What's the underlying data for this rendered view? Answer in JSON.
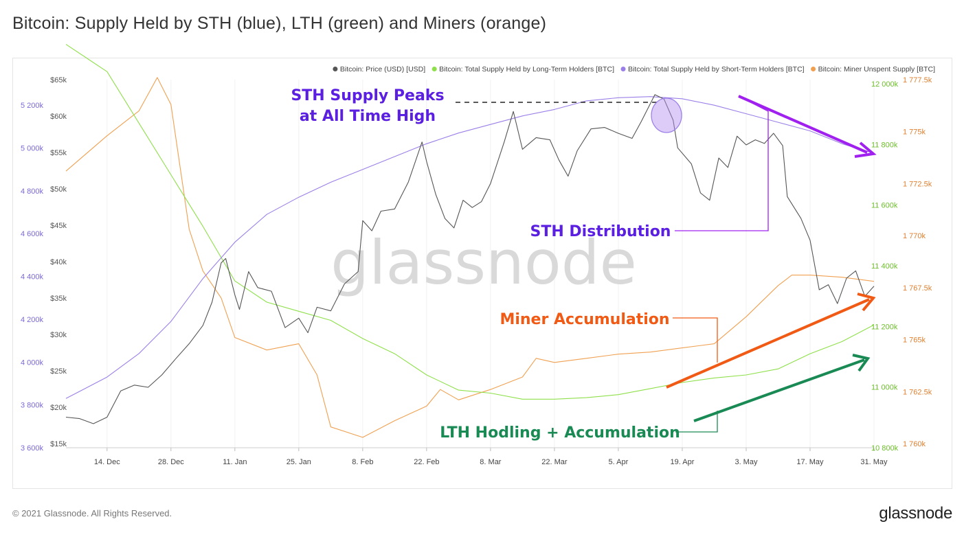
{
  "page": {
    "title": "Bitcoin: Supply Held by STH (blue), LTH (green) and Miners (orange)",
    "footer_copyright": "© 2021 Glassnode. All Rights Reserved.",
    "footer_logo": "glassnode",
    "watermark": "glassnode"
  },
  "colors": {
    "price": "#555555",
    "lth": "#8ee04a",
    "sth": "#9b7fe8",
    "miner": "#f0a050",
    "sth_axis": "#7b68d8",
    "lth_axis": "#6cbf2a",
    "miner_axis": "#e08030",
    "ann_sth": "#5a1fe0",
    "ann_miner": "#f05a14",
    "ann_lth": "#1a8a55",
    "arrow_sth": "#a020f0"
  },
  "chart_data": {
    "type": "line",
    "legend": [
      {
        "label": "Bitcoin: Price (USD) [USD]",
        "color": "#555555"
      },
      {
        "label": "Bitcoin: Total Supply Held by Long-Term Holders [BTC]",
        "color": "#8ee04a"
      },
      {
        "label": "Bitcoin: Total Supply Held by Short-Term Holders [BTC]",
        "color": "#9b7fe8"
      },
      {
        "label": "Bitcoin: Miner Unspent Supply [BTC]",
        "color": "#f0a050"
      }
    ],
    "legend_position": "top-right",
    "x_axis": {
      "type": "date",
      "range": [
        "2020-12-05",
        "2021-05-31"
      ],
      "ticks": [
        {
          "label": "14. Dec",
          "date": "2020-12-14"
        },
        {
          "label": "28. Dec",
          "date": "2020-12-28"
        },
        {
          "label": "11. Jan",
          "date": "2021-01-11"
        },
        {
          "label": "25. Jan",
          "date": "2021-01-25"
        },
        {
          "label": "8. Feb",
          "date": "2021-02-08"
        },
        {
          "label": "22. Feb",
          "date": "2021-02-22"
        },
        {
          "label": "8. Mar",
          "date": "2021-03-08"
        },
        {
          "label": "22. Mar",
          "date": "2021-03-22"
        },
        {
          "label": "5. Apr",
          "date": "2021-04-05"
        },
        {
          "label": "19. Apr",
          "date": "2021-04-19"
        },
        {
          "label": "3. May",
          "date": "2021-05-03"
        },
        {
          "label": "17. May",
          "date": "2021-05-17"
        },
        {
          "label": "31. May",
          "date": "2021-05-31"
        }
      ]
    },
    "axes": {
      "sth": {
        "side": "left-outer",
        "range": [
          3600,
          5300
        ],
        "ticks": [
          {
            "label": "3 600k",
            "value": 3600
          },
          {
            "label": "3 800k",
            "value": 3800
          },
          {
            "label": "4 000k",
            "value": 4000
          },
          {
            "label": "4 200k",
            "value": 4200
          },
          {
            "label": "4 400k",
            "value": 4400
          },
          {
            "label": "4 600k",
            "value": 4600
          },
          {
            "label": "4 800k",
            "value": 4800
          },
          {
            "label": "5 000k",
            "value": 5000
          },
          {
            "label": "5 200k",
            "value": 5200
          }
        ]
      },
      "price": {
        "side": "left-inner",
        "range": [
          15000,
          65000
        ],
        "ticks": [
          {
            "label": "$15k",
            "value": 15000
          },
          {
            "label": "$20k",
            "value": 20000
          },
          {
            "label": "$25k",
            "value": 25000
          },
          {
            "label": "$30k",
            "value": 30000
          },
          {
            "label": "$35k",
            "value": 35000
          },
          {
            "label": "$40k",
            "value": 40000
          },
          {
            "label": "$45k",
            "value": 45000
          },
          {
            "label": "$50k",
            "value": 50000
          },
          {
            "label": "$55k",
            "value": 55000
          },
          {
            "label": "$60k",
            "value": 60000
          },
          {
            "label": "$65k",
            "value": 65000
          }
        ]
      },
      "lth": {
        "side": "right-inner",
        "range": [
          10800,
          12000
        ],
        "ticks": [
          {
            "label": "10 800k",
            "value": 10800
          },
          {
            "label": "11 000k",
            "value": 11000
          },
          {
            "label": "11 200k",
            "value": 11200
          },
          {
            "label": "11 400k",
            "value": 11400
          },
          {
            "label": "11 600k",
            "value": 11600
          },
          {
            "label": "11 800k",
            "value": 11800
          },
          {
            "label": "12 000k",
            "value": 12000
          }
        ]
      },
      "miner": {
        "side": "right-outer",
        "range": [
          1760,
          1777.5
        ],
        "ticks": [
          {
            "label": "1 760k",
            "value": 1760
          },
          {
            "label": "1 762.5k",
            "value": 1762.5
          },
          {
            "label": "1 765k",
            "value": 1765
          },
          {
            "label": "1 767.5k",
            "value": 1767.5
          },
          {
            "label": "1 770k",
            "value": 1770
          },
          {
            "label": "1 772.5k",
            "value": 1772.5
          },
          {
            "label": "1 775k",
            "value": 1775
          },
          {
            "label": "1 777.5k",
            "value": 1777.5
          }
        ]
      }
    },
    "series": [
      {
        "name": "Bitcoin: Price (USD) [USD]",
        "axis": "price",
        "points": [
          [
            "2020-12-05",
            19200
          ],
          [
            "2020-12-08",
            19000
          ],
          [
            "2020-12-11",
            18300
          ],
          [
            "2020-12-14",
            19200
          ],
          [
            "2020-12-17",
            22800
          ],
          [
            "2020-12-20",
            23600
          ],
          [
            "2020-12-23",
            23300
          ],
          [
            "2020-12-26",
            25000
          ],
          [
            "2020-12-29",
            27200
          ],
          [
            "2021-01-01",
            29300
          ],
          [
            "2021-01-04",
            31800
          ],
          [
            "2021-01-06",
            35000
          ],
          [
            "2021-01-08",
            40400
          ],
          [
            "2021-01-09",
            41000
          ],
          [
            "2021-01-11",
            36000
          ],
          [
            "2021-01-12",
            34000
          ],
          [
            "2021-01-14",
            39200
          ],
          [
            "2021-01-16",
            37000
          ],
          [
            "2021-01-19",
            36500
          ],
          [
            "2021-01-22",
            31500
          ],
          [
            "2021-01-25",
            32800
          ],
          [
            "2021-01-27",
            30800
          ],
          [
            "2021-01-29",
            34300
          ],
          [
            "2021-02-01",
            33800
          ],
          [
            "2021-02-04",
            37500
          ],
          [
            "2021-02-07",
            39200
          ],
          [
            "2021-02-08",
            46200
          ],
          [
            "2021-02-10",
            44800
          ],
          [
            "2021-02-12",
            47500
          ],
          [
            "2021-02-15",
            47800
          ],
          [
            "2021-02-18",
            51500
          ],
          [
            "2021-02-21",
            57000
          ],
          [
            "2021-02-22",
            54300
          ],
          [
            "2021-02-24",
            49800
          ],
          [
            "2021-02-26",
            46500
          ],
          [
            "2021-02-28",
            45200
          ],
          [
            "2021-03-02",
            49000
          ],
          [
            "2021-03-04",
            48000
          ],
          [
            "2021-03-06",
            48800
          ],
          [
            "2021-03-08",
            51300
          ],
          [
            "2021-03-11",
            57000
          ],
          [
            "2021-03-13",
            61200
          ],
          [
            "2021-03-15",
            56000
          ],
          [
            "2021-03-18",
            57600
          ],
          [
            "2021-03-21",
            57300
          ],
          [
            "2021-03-23",
            54500
          ],
          [
            "2021-03-25",
            52300
          ],
          [
            "2021-03-27",
            55800
          ],
          [
            "2021-03-30",
            58800
          ],
          [
            "2021-04-02",
            59000
          ],
          [
            "2021-04-05",
            58200
          ],
          [
            "2021-04-08",
            57500
          ],
          [
            "2021-04-10",
            59800
          ],
          [
            "2021-04-13",
            63500
          ],
          [
            "2021-04-15",
            62900
          ],
          [
            "2021-04-17",
            60000
          ],
          [
            "2021-04-18",
            56200
          ],
          [
            "2021-04-21",
            54000
          ],
          [
            "2021-04-23",
            50000
          ],
          [
            "2021-04-25",
            49000
          ],
          [
            "2021-04-27",
            54800
          ],
          [
            "2021-04-29",
            53500
          ],
          [
            "2021-05-01",
            57800
          ],
          [
            "2021-05-03",
            56600
          ],
          [
            "2021-05-05",
            57300
          ],
          [
            "2021-05-07",
            56800
          ],
          [
            "2021-05-09",
            58200
          ],
          [
            "2021-05-11",
            56500
          ],
          [
            "2021-05-12",
            49500
          ],
          [
            "2021-05-15",
            46500
          ],
          [
            "2021-05-17",
            43500
          ],
          [
            "2021-05-19",
            36700
          ],
          [
            "2021-05-21",
            37400
          ],
          [
            "2021-05-23",
            34800
          ],
          [
            "2021-05-25",
            38300
          ],
          [
            "2021-05-27",
            39300
          ],
          [
            "2021-05-29",
            35800
          ],
          [
            "2021-05-31",
            37200
          ]
        ]
      },
      {
        "name": "Bitcoin: Total Supply Held by Short-Term Holders [BTC]",
        "axis": "sth",
        "points": [
          [
            "2020-12-05",
            3830
          ],
          [
            "2020-12-14",
            3930
          ],
          [
            "2020-12-21",
            4040
          ],
          [
            "2020-12-28",
            4190
          ],
          [
            "2021-01-04",
            4390
          ],
          [
            "2021-01-11",
            4560
          ],
          [
            "2021-01-18",
            4690
          ],
          [
            "2021-01-25",
            4770
          ],
          [
            "2021-02-01",
            4840
          ],
          [
            "2021-02-08",
            4900
          ],
          [
            "2021-02-15",
            4960
          ],
          [
            "2021-02-22",
            5020
          ],
          [
            "2021-03-01",
            5070
          ],
          [
            "2021-03-08",
            5110
          ],
          [
            "2021-03-15",
            5150
          ],
          [
            "2021-03-22",
            5180
          ],
          [
            "2021-03-29",
            5220
          ],
          [
            "2021-04-05",
            5235
          ],
          [
            "2021-04-12",
            5240
          ],
          [
            "2021-04-19",
            5230
          ],
          [
            "2021-04-26",
            5200
          ],
          [
            "2021-05-03",
            5160
          ],
          [
            "2021-05-10",
            5120
          ],
          [
            "2021-05-17",
            5080
          ],
          [
            "2021-05-24",
            5020
          ],
          [
            "2021-05-31",
            4975
          ]
        ]
      },
      {
        "name": "Bitcoin: Total Supply Held by Long-Term Holders [BTC]",
        "axis": "lth",
        "points": [
          [
            "2020-12-05",
            12130
          ],
          [
            "2020-12-14",
            12040
          ],
          [
            "2020-12-21",
            11870
          ],
          [
            "2020-12-28",
            11700
          ],
          [
            "2021-01-04",
            11530
          ],
          [
            "2021-01-11",
            11350
          ],
          [
            "2021-01-18",
            11280
          ],
          [
            "2021-01-25",
            11250
          ],
          [
            "2021-02-01",
            11220
          ],
          [
            "2021-02-08",
            11160
          ],
          [
            "2021-02-15",
            11110
          ],
          [
            "2021-02-22",
            11040
          ],
          [
            "2021-03-01",
            10990
          ],
          [
            "2021-03-08",
            10980
          ],
          [
            "2021-03-15",
            10960
          ],
          [
            "2021-03-22",
            10960
          ],
          [
            "2021-03-29",
            10965
          ],
          [
            "2021-04-05",
            10975
          ],
          [
            "2021-04-12",
            10995
          ],
          [
            "2021-04-19",
            11015
          ],
          [
            "2021-04-26",
            11030
          ],
          [
            "2021-05-03",
            11040
          ],
          [
            "2021-05-10",
            11060
          ],
          [
            "2021-05-17",
            11110
          ],
          [
            "2021-05-24",
            11150
          ],
          [
            "2021-05-31",
            11205
          ]
        ]
      },
      {
        "name": "Bitcoin: Miner Unspent Supply [BTC]",
        "axis": "miner",
        "points": [
          [
            "2020-12-05",
            1773.3
          ],
          [
            "2020-12-14",
            1775.0
          ],
          [
            "2020-12-21",
            1776.2
          ],
          [
            "2020-12-25",
            1777.8
          ],
          [
            "2020-12-28",
            1776.5
          ],
          [
            "2021-01-01",
            1770.5
          ],
          [
            "2021-01-04",
            1768.5
          ],
          [
            "2021-01-08",
            1767.2
          ],
          [
            "2021-01-11",
            1765.3
          ],
          [
            "2021-01-18",
            1764.7
          ],
          [
            "2021-01-25",
            1765.0
          ],
          [
            "2021-01-29",
            1763.5
          ],
          [
            "2021-02-01",
            1761.0
          ],
          [
            "2021-02-08",
            1760.5
          ],
          [
            "2021-02-15",
            1761.3
          ],
          [
            "2021-02-22",
            1762.0
          ],
          [
            "2021-02-25",
            1762.8
          ],
          [
            "2021-03-01",
            1762.3
          ],
          [
            "2021-03-08",
            1762.8
          ],
          [
            "2021-03-15",
            1763.4
          ],
          [
            "2021-03-18",
            1764.3
          ],
          [
            "2021-03-22",
            1764.1
          ],
          [
            "2021-03-29",
            1764.3
          ],
          [
            "2021-04-05",
            1764.5
          ],
          [
            "2021-04-12",
            1764.6
          ],
          [
            "2021-04-19",
            1764.8
          ],
          [
            "2021-04-26",
            1765.0
          ],
          [
            "2021-05-03",
            1766.3
          ],
          [
            "2021-05-10",
            1767.8
          ],
          [
            "2021-05-13",
            1768.3
          ],
          [
            "2021-05-17",
            1768.3
          ],
          [
            "2021-05-24",
            1768.2
          ],
          [
            "2021-05-31",
            1768.0
          ]
        ]
      }
    ]
  },
  "annotations": {
    "sth_peak_line1": "STH Supply Peaks",
    "sth_peak_line2": "at All Time High",
    "sth_distribution": "STH Distribution",
    "miner_accumulation": "Miner Accumulation",
    "lth_accumulation": "LTH Hodling + Accumulation"
  }
}
